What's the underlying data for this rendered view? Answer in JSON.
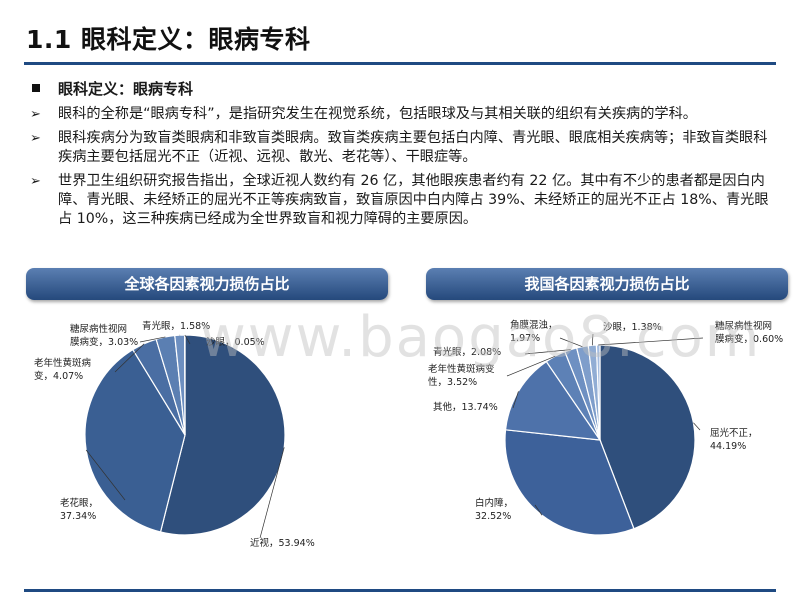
{
  "page": {
    "title": "1.1 眼科定义：眼病专科"
  },
  "content": {
    "heading": "眼科定义：眼病专科",
    "bullets": [
      "眼科的全称是“眼病专科”，是指研究发生在视觉系统，包括眼球及与其相关联的组织有关疾病的学科。",
      "眼科疾病分为致盲类眼病和非致盲类眼病。致盲类疾病主要包括白内障、青光眼、眼底相关疾病等；非致盲类眼科疾病主要包括屈光不正（近视、远视、散光、老花等）、干眼症等。",
      "世界卫生组织研究报告指出，全球近视人数约有 26 亿，其他眼疾患者约有 22 亿。其中有不少的患者都是因白内障、青光眼、未经矫正的屈光不正等疾病致盲，致盲原因中白内障占  39%、未经矫正的屈光不正占 18%、青光眼占 10%，这三种疾病已经成为全世界致盲和视力障碍的主要原因。"
    ]
  },
  "watermark": "www.baogao8.com",
  "chart_data": [
    {
      "type": "pie",
      "title": "全球各因素视力损伤占比",
      "slices": [
        {
          "name": "近视",
          "value": 53.94,
          "label": "近视，53.94%",
          "color": "#2f4f7c"
        },
        {
          "name": "老花眼",
          "value": 37.34,
          "label": "老花眼，\n37.34%",
          "color": "#3a5f93"
        },
        {
          "name": "老年性黄斑病变",
          "value": 4.07,
          "label": "老年性黄斑病\n变，4.07%",
          "color": "#4a6ea3"
        },
        {
          "name": "糖尿病性视网膜病变",
          "value": 3.03,
          "label": "糖尿病性视网\n膜病变，3.03%",
          "color": "#5b7fb2"
        },
        {
          "name": "青光眼",
          "value": 1.58,
          "label": "青光眼，1.58%",
          "color": "#6d8fc0"
        },
        {
          "name": "沙眼",
          "value": 0.05,
          "label": "沙眼，0.05%",
          "color": "#8aa6d0"
        }
      ]
    },
    {
      "type": "pie",
      "title": "我国各因素视力损伤占比",
      "slices": [
        {
          "name": "屈光不正",
          "value": 44.19,
          "label": "屈光不正，\n44.19%",
          "color": "#2f4f7c"
        },
        {
          "name": "白内障",
          "value": 32.52,
          "label": "白内障，\n32.52%",
          "color": "#3d619a"
        },
        {
          "name": "其他",
          "value": 13.74,
          "label": "其他，13.74%",
          "color": "#4e72aa"
        },
        {
          "name": "老年性黄斑病变",
          "value": 3.52,
          "label": "老年性黄斑病变\n性，3.52%",
          "color": "#5d81b6"
        },
        {
          "name": "青光眼",
          "value": 2.08,
          "label": "青光眼，2.08%",
          "color": "#6e90c2"
        },
        {
          "name": "角膜混浊",
          "value": 1.97,
          "label": "角膜混浊，\n1.97%",
          "color": "#7f9ecb"
        },
        {
          "name": "沙眼",
          "value": 1.38,
          "label": "沙眼，1.38%",
          "color": "#91add4"
        },
        {
          "name": "糖尿病性视网膜病变",
          "value": 0.6,
          "label": "糖尿病性视网\n膜病变，0.60%",
          "color": "#a5bde0"
        }
      ]
    }
  ]
}
